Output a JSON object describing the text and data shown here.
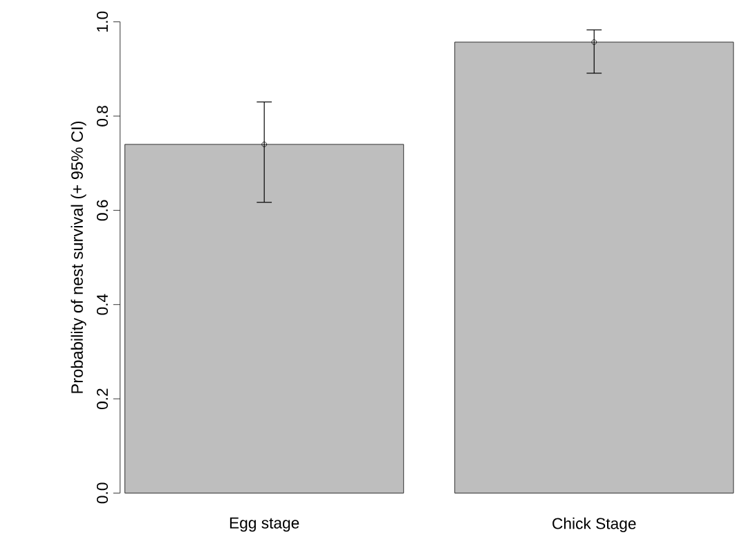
{
  "chart_data": {
    "type": "bar",
    "ylabel": "Probability of nest survival (+ 95% CI)",
    "categories": [
      "Egg stage",
      "Chick Stage"
    ],
    "series": [
      {
        "color": "#bebebe",
        "values": [
          0.74,
          0.957
        ],
        "errors": [
          [
            0.617,
            0.83
          ],
          [
            0.891,
            0.983
          ]
        ]
      },
      {
        "type": "scatter",
        "color": "#000000",
        "x": [
          "Egg stage",
          "Chick Stage"
        ],
        "values": [
          0.74,
          0.957
        ]
      }
    ],
    "marker": "circle",
    "ylim": [
      0,
      1
    ],
    "yticks": [
      {
        "value": 0,
        "label": "0.0"
      },
      0.2,
      0.4,
      0.6,
      0.8,
      {
        "value": 1,
        "label": "1.0"
      }
    ],
    "grid": false
  }
}
